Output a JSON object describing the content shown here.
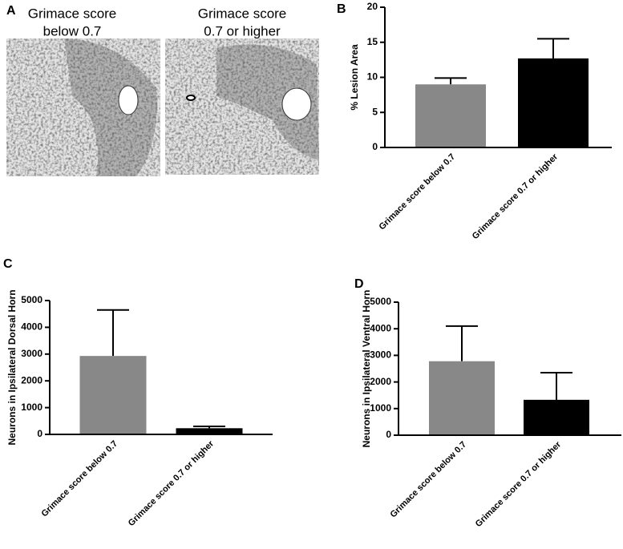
{
  "panel_a": {
    "panel_label": "A",
    "images": [
      {
        "title_lines": [
          "Grimace score",
          "below 0.7"
        ]
      },
      {
        "title_lines": [
          "Grimace score",
          "0.7 or higher"
        ]
      }
    ]
  },
  "chart_data": [
    {
      "type": "bar",
      "panel_label": "B",
      "y_label": "% Lesion Area",
      "categories": [
        "Grimace score below 0.7",
        "Grimace score 0.7 or higher"
      ],
      "series": [
        {
          "values": [
            9.0,
            12.7
          ],
          "errors": [
            0.9,
            2.8
          ],
          "colors": [
            "#888888",
            "#000000"
          ]
        }
      ],
      "ylim": [
        0,
        20
      ],
      "yticks": [
        0,
        5,
        10,
        15,
        20
      ]
    },
    {
      "type": "bar",
      "panel_label": "C",
      "y_label": "Neurons in Ipsilateral Dorsal Horn",
      "categories": [
        "Grimace score below 0.7",
        "Grimace score 0.7 or higher"
      ],
      "series": [
        {
          "values": [
            2930,
            230
          ],
          "errors": [
            1720,
            70
          ],
          "colors": [
            "#888888",
            "#000000"
          ]
        }
      ],
      "ylim": [
        0,
        5000
      ],
      "yticks": [
        0,
        1000,
        2000,
        3000,
        4000,
        5000
      ]
    },
    {
      "type": "bar",
      "panel_label": "D",
      "y_label": "Neurons in Ipsilateral Ventral Horn",
      "categories": [
        "Grimace score below 0.7",
        "Grimace score 0.7 or higher"
      ],
      "series": [
        {
          "values": [
            2780,
            1330
          ],
          "errors": [
            1320,
            1020
          ],
          "colors": [
            "#888888",
            "#000000"
          ]
        }
      ],
      "ylim": [
        0,
        5000
      ],
      "yticks": [
        0,
        1000,
        2000,
        3000,
        4000,
        5000
      ]
    }
  ]
}
